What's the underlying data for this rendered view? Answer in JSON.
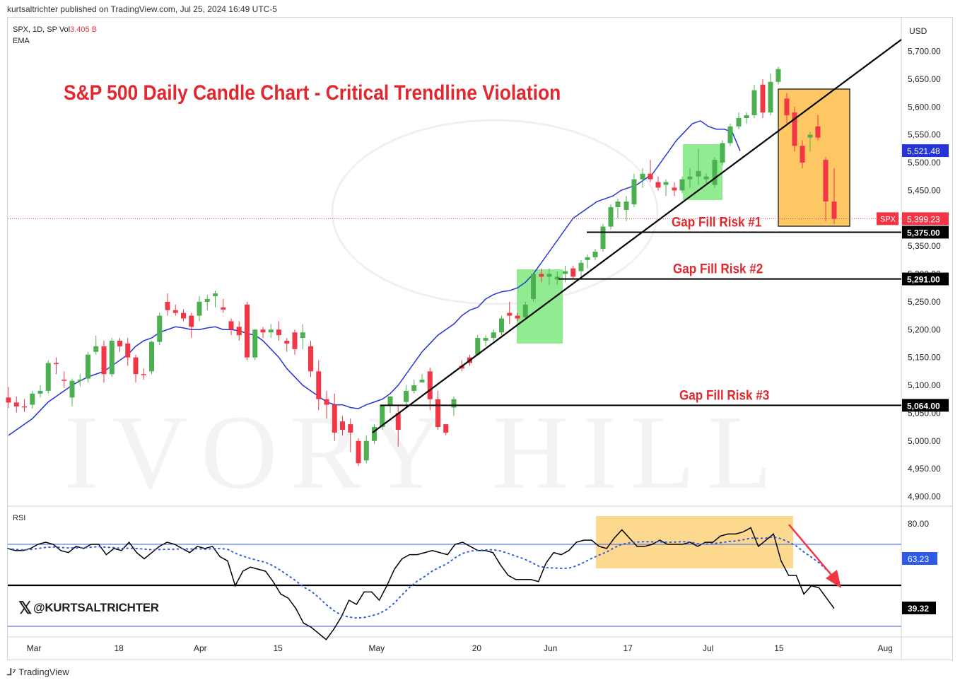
{
  "header": {
    "published": "kurtsaltrichter published on TradingView.com, Jul 25, 2024 16:49 UTC-5",
    "symbol": "SPX, 1D, SP  Vol",
    "volume": "3.405 B",
    "indicator": "EMA",
    "currency": "USD"
  },
  "branding": {
    "handle": "@KURTSALTRICHTER",
    "platform": "TradingView",
    "watermark": "IVORY HILL"
  },
  "chart_data": {
    "type": "candlestick",
    "title": "S&P 500 Daily Candle Chart - Critical Trendline Violation",
    "ylim": [
      4850,
      5750
    ],
    "y_ticks": [
      4900,
      4950,
      5000,
      5050,
      5100,
      5150,
      5200,
      5250,
      5300,
      5350,
      5400,
      5450,
      5500,
      5550,
      5600,
      5650,
      5700
    ],
    "y_tick_labels": [
      "4,900.00",
      "4,950.00",
      "5,000.00",
      "5,050.00",
      "5,100.00",
      "5,150.00",
      "5,200.00",
      "5,250.00",
      "5,300.00",
      "5,350.00",
      "5,400.00",
      "5,450.00",
      "5,500.00",
      "5,550.00",
      "5,600.00",
      "5,650.00",
      "5,700.00"
    ],
    "x_labels": [
      {
        "label": "Mar",
        "index": 3
      },
      {
        "label": "18",
        "index": 14
      },
      {
        "label": "Apr",
        "index": 24
      },
      {
        "label": "15",
        "index": 34
      },
      {
        "label": "May",
        "index": 46
      },
      {
        "label": "20",
        "index": 59
      },
      {
        "label": "Jun",
        "index": 68
      },
      {
        "label": "17",
        "index": 78
      },
      {
        "label": "Jul",
        "index": 88
      },
      {
        "label": "15",
        "index": 97
      },
      {
        "label": "Aug",
        "index": 110
      }
    ],
    "candles": [
      [
        5078,
        5097,
        5059,
        5069
      ],
      [
        5069,
        5080,
        5051,
        5062
      ],
      [
        5062,
        5075,
        5052,
        5061
      ],
      [
        5065,
        5090,
        5058,
        5085
      ],
      [
        5085,
        5100,
        5078,
        5090
      ],
      [
        5090,
        5145,
        5085,
        5140
      ],
      [
        5140,
        5150,
        5120,
        5138
      ],
      [
        5110,
        5125,
        5095,
        5108
      ],
      [
        5078,
        5112,
        5062,
        5108
      ],
      [
        5108,
        5120,
        5098,
        5110
      ],
      [
        5112,
        5160,
        5105,
        5155
      ],
      [
        5160,
        5189,
        5155,
        5170
      ],
      [
        5170,
        5180,
        5105,
        5120
      ],
      [
        5120,
        5185,
        5115,
        5180
      ],
      [
        5180,
        5185,
        5160,
        5170
      ],
      [
        5175,
        5185,
        5135,
        5150
      ],
      [
        5150,
        5155,
        5105,
        5120
      ],
      [
        5120,
        5130,
        5110,
        5118
      ],
      [
        5125,
        5180,
        5120,
        5178
      ],
      [
        5178,
        5230,
        5172,
        5225
      ],
      [
        5250,
        5265,
        5225,
        5235
      ],
      [
        5235,
        5245,
        5225,
        5230
      ],
      [
        5230,
        5237,
        5215,
        5220
      ],
      [
        5225,
        5230,
        5185,
        5205
      ],
      [
        5225,
        5260,
        5215,
        5250
      ],
      [
        5250,
        5262,
        5235,
        5255
      ],
      [
        5260,
        5270,
        5240,
        5265
      ],
      [
        5240,
        5255,
        5230,
        5236
      ],
      [
        5215,
        5220,
        5190,
        5200
      ],
      [
        5205,
        5215,
        5180,
        5190
      ],
      [
        5245,
        5250,
        5145,
        5150
      ],
      [
        5150,
        5200,
        5145,
        5200
      ],
      [
        5200,
        5205,
        5185,
        5195
      ],
      [
        5195,
        5210,
        5185,
        5200
      ],
      [
        5200,
        5215,
        5180,
        5190
      ],
      [
        5180,
        5185,
        5160,
        5175
      ],
      [
        5195,
        5200,
        5155,
        5165
      ],
      [
        5185,
        5210,
        5165,
        5195
      ],
      [
        5170,
        5180,
        5115,
        5125
      ],
      [
        5125,
        5145,
        5055,
        5075
      ],
      [
        5075,
        5090,
        5040,
        5065
      ],
      [
        5065,
        5085,
        5000,
        5015
      ],
      [
        5035,
        5045,
        5010,
        5020
      ],
      [
        5030,
        5040,
        4980,
        5015
      ],
      [
        5000,
        5005,
        4955,
        4960
      ],
      [
        4965,
        5010,
        4960,
        5000
      ],
      [
        5000,
        5030,
        4995,
        5025
      ],
      [
        5025,
        5065,
        5020,
        5065
      ],
      [
        5065,
        5080,
        5050,
        5080
      ],
      [
        5050,
        5065,
        4990,
        5020
      ],
      [
        5070,
        5100,
        5060,
        5090
      ],
      [
        5090,
        5110,
        5085,
        5100
      ],
      [
        5105,
        5120,
        5105,
        5110
      ],
      [
        5125,
        5132,
        5055,
        5075
      ],
      [
        5075,
        5090,
        5020,
        5025
      ],
      [
        5030,
        5030,
        5010,
        5015
      ],
      [
        5060,
        5080,
        5045,
        5075
      ],
      [
        5135,
        5145,
        5125,
        5130
      ],
      [
        5150,
        5155,
        5135,
        5140
      ],
      [
        5155,
        5190,
        5155,
        5185
      ],
      [
        5180,
        5190,
        5170,
        5185
      ],
      [
        5185,
        5200,
        5180,
        5195
      ],
      [
        5195,
        5225,
        5190,
        5220
      ],
      [
        5230,
        5250,
        5210,
        5225
      ],
      [
        5225,
        5230,
        5215,
        5220
      ],
      [
        5222,
        5250,
        5220,
        5245
      ],
      [
        5255,
        5300,
        5250,
        5300
      ],
      [
        5300,
        5310,
        5285,
        5295
      ],
      [
        5295,
        5310,
        5280,
        5300
      ],
      [
        5290,
        5305,
        5280,
        5295
      ],
      [
        5300,
        5315,
        5285,
        5305
      ],
      [
        5310,
        5315,
        5290,
        5295
      ],
      [
        5305,
        5325,
        5290,
        5320
      ]
    ],
    "ema": [
      5010,
      5020,
      5030,
      5040,
      5055,
      5070,
      5080,
      5090,
      5100,
      5108,
      5115,
      5120,
      5125,
      5135,
      5145,
      5155,
      5170,
      5180,
      5185,
      5195,
      5200,
      5205,
      5203,
      5200,
      5200,
      5203,
      5205,
      5200,
      5200,
      5198,
      5193,
      5190,
      5180,
      5165,
      5150,
      5130,
      5115,
      5100,
      5090,
      5080,
      5070,
      5065,
      5065,
      5060,
      5058,
      5065,
      5070,
      5075,
      5085,
      5100,
      5120,
      5140,
      5160,
      5175,
      5190,
      5200,
      5210,
      5225,
      5235,
      5240,
      5255,
      5263,
      5268,
      5270,
      5275,
      5285,
      5300,
      5320,
      5340,
      5360,
      5380,
      5400,
      5410,
      5420,
      5430,
      5435,
      5440,
      5450,
      5455,
      5460,
      5470,
      5480,
      5500,
      5520,
      5540,
      5555,
      5570,
      5575,
      5565,
      5560,
      5560,
      5555,
      5521
    ],
    "rsi": {
      "ylim": [
        20,
        90
      ],
      "levels": [
        70,
        50,
        30
      ],
      "last": 39.32,
      "signal_last": 63.23,
      "tick_label": "80.00",
      "values": [
        68,
        67,
        67,
        68,
        70,
        71,
        70,
        67,
        66,
        69,
        68,
        70,
        70,
        65,
        68,
        67,
        71,
        66,
        63,
        66,
        69,
        71,
        70,
        68,
        66,
        69,
        68,
        69,
        64,
        62,
        50,
        57,
        59,
        58,
        57,
        52,
        46,
        44,
        39,
        32,
        30,
        27,
        24,
        29,
        35,
        43,
        41,
        47,
        47,
        43,
        50,
        58,
        63,
        65,
        65,
        66,
        67,
        66,
        65,
        70,
        71,
        69,
        67,
        67,
        66,
        60,
        55,
        53,
        53,
        53,
        52,
        61,
        66,
        65,
        67,
        71,
        72,
        72,
        69,
        68,
        73,
        77,
        73,
        69,
        69,
        70,
        72,
        70,
        70,
        70,
        71,
        69,
        71,
        71,
        74,
        75,
        75,
        76,
        78,
        69,
        72,
        75,
        62,
        55,
        55,
        46,
        50,
        49,
        44,
        39
      ]
    },
    "levels": [
      {
        "label": "Gap Fill Risk #1",
        "value": 5375,
        "price": "5,375.00"
      },
      {
        "label": "Gap Fill Risk #2",
        "value": 5291,
        "price": "5,291.00"
      },
      {
        "label": "Gap Fill Risk #3",
        "value": 5064,
        "price": "5,064.00"
      }
    ],
    "price_tags": {
      "spx_label": "SPX",
      "spx": "5,399.23",
      "spx_value": 5399.23,
      "ema": "5,521.48",
      "ema_value": 5521.48,
      "rsi": "39.32",
      "rsi_signal": "63.23"
    }
  }
}
